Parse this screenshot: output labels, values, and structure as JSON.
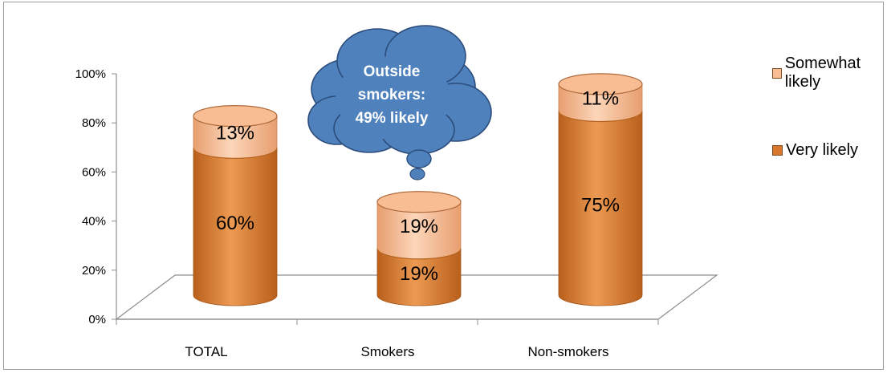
{
  "colors": {
    "very_likely": "#D9782D",
    "very_likely_light": "#ED9A52",
    "very_likely_dark": "#B85F1C",
    "somewhat_likely": "#F9BD93",
    "somewhat_likely_light": "#FCD6BA",
    "somewhat_likely_dark": "#E79E6E",
    "callout_fill": "#4F81BD",
    "callout_text": "#FFFFFF"
  },
  "callout": {
    "lines": [
      "Outside",
      "smokers:",
      "49% likely"
    ]
  },
  "chart_data": {
    "type": "bar",
    "style": "3d-cylinder-stacked",
    "categories": [
      "TOTAL",
      "Smokers",
      "Non-smokers"
    ],
    "series": [
      {
        "name": "Very likely",
        "values": [
          60,
          19,
          75
        ],
        "labels": [
          "60%",
          "19%",
          "75%"
        ]
      },
      {
        "name": "Somewhat likely",
        "values": [
          13,
          19,
          11
        ],
        "labels": [
          "13%",
          "19%",
          "11%"
        ]
      }
    ],
    "ylim": [
      0,
      100
    ],
    "yticks": [
      "0%",
      "20%",
      "40%",
      "60%",
      "80%",
      "100%"
    ],
    "legend": {
      "position": "right",
      "entries": [
        "Somewhat likely",
        "Very likely"
      ]
    },
    "grid": false
  }
}
